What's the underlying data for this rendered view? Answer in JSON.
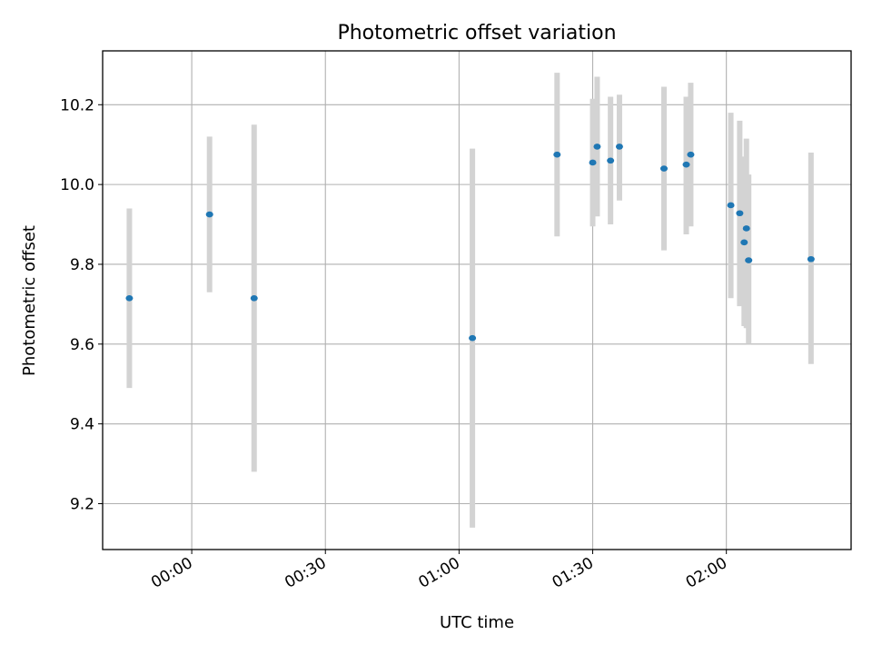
{
  "chart_data": {
    "type": "scatter",
    "title": "Photometric offset variation",
    "xlabel": "UTC time",
    "ylabel": "Photometric offset",
    "x_axis_kind": "time",
    "x_ticks": [
      "00:00",
      "00:30",
      "01:00",
      "01:30",
      "02:00"
    ],
    "y_ticks": [
      "9.2",
      "9.4",
      "9.6",
      "9.8",
      "10.0",
      "10.2"
    ],
    "xlim": [
      "23:40",
      "02:28"
    ],
    "ylim": [
      9.085,
      10.335
    ],
    "grid": true,
    "series": [
      {
        "color": "#1f77b4",
        "errorbar_color": "#d3d3d3",
        "points": [
          {
            "x": "23:46",
            "y": 9.715,
            "ylow": 9.49,
            "yhigh": 9.94
          },
          {
            "x": "00:04",
            "y": 9.925,
            "ylow": 9.73,
            "yhigh": 10.12
          },
          {
            "x": "00:14",
            "y": 9.715,
            "ylow": 9.28,
            "yhigh": 10.15
          },
          {
            "x": "01:03",
            "y": 9.615,
            "ylow": 9.14,
            "yhigh": 10.09
          },
          {
            "x": "01:22",
            "y": 10.075,
            "ylow": 9.87,
            "yhigh": 10.28
          },
          {
            "x": "01:30",
            "y": 10.055,
            "ylow": 9.895,
            "yhigh": 10.215
          },
          {
            "x": "01:31",
            "y": 10.095,
            "ylow": 9.92,
            "yhigh": 10.27
          },
          {
            "x": "01:34",
            "y": 10.06,
            "ylow": 9.9,
            "yhigh": 10.22
          },
          {
            "x": "01:36",
            "y": 10.095,
            "ylow": 9.96,
            "yhigh": 10.225
          },
          {
            "x": "01:46",
            "y": 10.04,
            "ylow": 9.835,
            "yhigh": 10.245
          },
          {
            "x": "01:51",
            "y": 10.05,
            "ylow": 9.875,
            "yhigh": 10.22
          },
          {
            "x": "01:52",
            "y": 10.075,
            "ylow": 9.895,
            "yhigh": 10.255
          },
          {
            "x": "02:01",
            "y": 9.948,
            "ylow": 9.715,
            "yhigh": 10.18
          },
          {
            "x": "02:03",
            "y": 9.928,
            "ylow": 9.695,
            "yhigh": 10.16
          },
          {
            "x": "02:04",
            "y": 9.855,
            "ylow": 9.645,
            "yhigh": 10.07
          },
          {
            "x": "02:04:30",
            "y": 9.89,
            "ylow": 9.64,
            "yhigh": 10.115
          },
          {
            "x": "02:05",
            "y": 9.81,
            "ylow": 9.6,
            "yhigh": 10.025
          },
          {
            "x": "02:19",
            "y": 9.813,
            "ylow": 9.55,
            "yhigh": 10.08
          }
        ]
      }
    ]
  }
}
